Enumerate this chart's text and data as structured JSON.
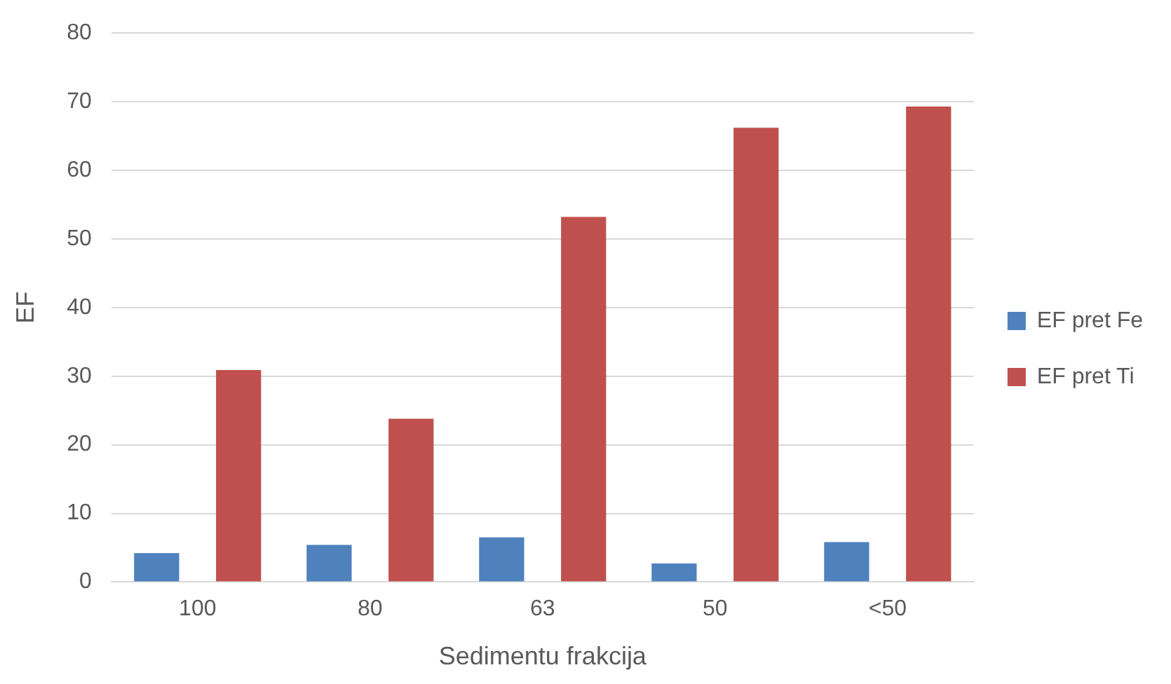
{
  "chart_data": {
    "type": "bar",
    "xlabel": "Sedimentu frakcija",
    "ylabel": "EF",
    "categories": [
      "100",
      "80",
      "63",
      "50",
      "<50"
    ],
    "series": [
      {
        "name": "EF pret Fe",
        "color": "#4f81bd",
        "values": [
          4.2,
          5.4,
          6.5,
          2.7,
          5.8
        ]
      },
      {
        "name": "EF pret Ti",
        "color": "#c0504d",
        "values": [
          30.9,
          23.8,
          53.2,
          66.2,
          69.3
        ]
      }
    ],
    "ylim": [
      0,
      80
    ],
    "yticks": [
      0,
      10,
      20,
      30,
      40,
      50,
      60,
      70,
      80
    ],
    "grid": "y",
    "legend": "right"
  }
}
